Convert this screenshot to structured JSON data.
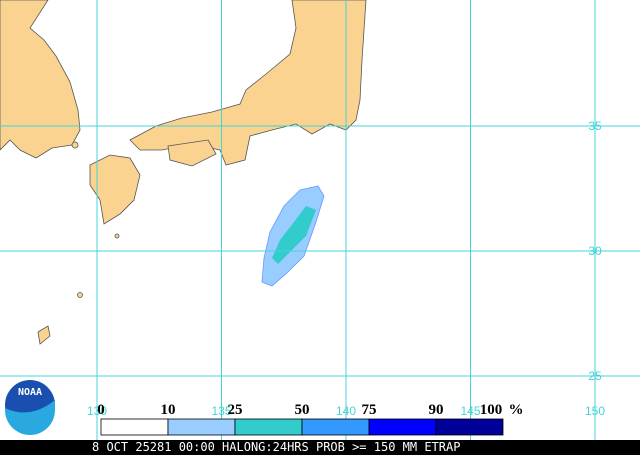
{
  "logo": "NOAA",
  "grid": {
    "lat": [
      35,
      30,
      25
    ],
    "lon": [
      130,
      135,
      140,
      145,
      150
    ]
  },
  "legend": {
    "breaks": [
      0,
      10,
      25,
      50,
      75,
      90,
      100
    ],
    "unit": "%",
    "colors": [
      "#ffffff",
      "#99ccff",
      "#33cccc",
      "#3399ff",
      "#0000ff",
      "#000099"
    ]
  },
  "footer": "8 OCT 25281 00:00 HALONG:24HRS PROB >= 150 MM ETRAP"
}
